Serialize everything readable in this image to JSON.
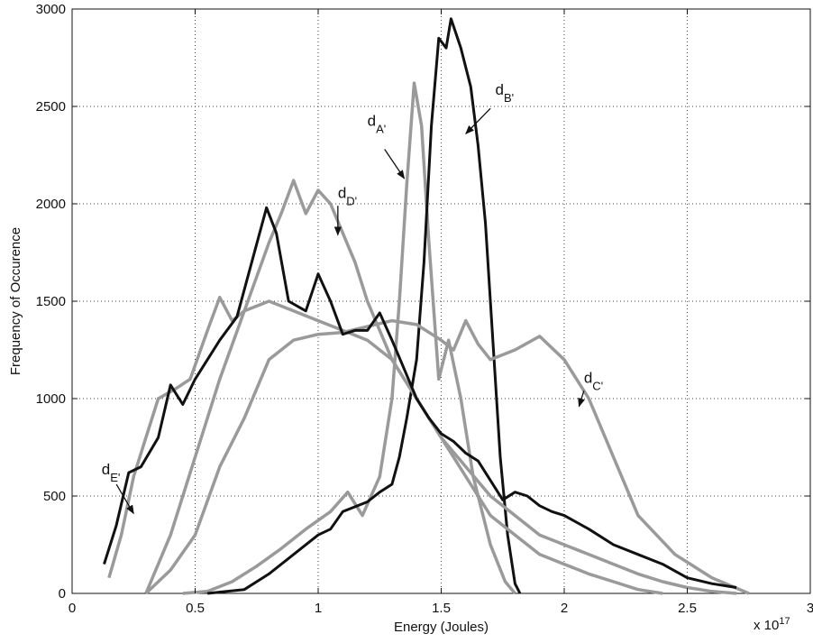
{
  "chart_data": {
    "type": "line",
    "title": "",
    "xlabel": "Energy (Joules)",
    "ylabel": "Frequency of Occurence",
    "x_multiplier_label": "x 10",
    "x_multiplier_exponent": "17",
    "xlim": [
      0,
      3
    ],
    "ylim": [
      0,
      3000
    ],
    "x_ticks": [
      0,
      0.5,
      1,
      1.5,
      2,
      2.5,
      3
    ],
    "x_tick_labels": [
      "0",
      "0.5",
      "1",
      "1.5",
      "2",
      "2.5",
      "3"
    ],
    "y_ticks": [
      0,
      500,
      1000,
      1500,
      2000,
      2500,
      3000
    ],
    "y_tick_labels": [
      "0",
      "500",
      "1000",
      "1500",
      "2000",
      "2500",
      "3000"
    ],
    "grid": true,
    "series": [
      {
        "color": "#9a9a9a",
        "points": [
          [
            0.45,
            0
          ],
          [
            0.55,
            10
          ],
          [
            0.65,
            60
          ],
          [
            0.75,
            140
          ],
          [
            0.85,
            230
          ],
          [
            0.95,
            330
          ],
          [
            1.05,
            420
          ],
          [
            1.12,
            520
          ],
          [
            1.18,
            400
          ],
          [
            1.25,
            600
          ],
          [
            1.3,
            1000
          ],
          [
            1.33,
            1500
          ],
          [
            1.36,
            2100
          ],
          [
            1.39,
            2620
          ],
          [
            1.42,
            2400
          ],
          [
            1.45,
            1800
          ],
          [
            1.49,
            1100
          ],
          [
            1.53,
            1300
          ],
          [
            1.58,
            1000
          ],
          [
            1.63,
            600
          ],
          [
            1.7,
            250
          ],
          [
            1.76,
            60
          ],
          [
            1.8,
            0
          ]
        ]
      },
      {
        "color": "#111111",
        "points": [
          [
            0.55,
            0
          ],
          [
            0.7,
            20
          ],
          [
            0.8,
            100
          ],
          [
            0.9,
            200
          ],
          [
            1.0,
            300
          ],
          [
            1.05,
            330
          ],
          [
            1.1,
            420
          ],
          [
            1.2,
            470
          ],
          [
            1.25,
            520
          ],
          [
            1.3,
            560
          ],
          [
            1.33,
            700
          ],
          [
            1.36,
            900
          ],
          [
            1.4,
            1200
          ],
          [
            1.43,
            1700
          ],
          [
            1.46,
            2400
          ],
          [
            1.49,
            2850
          ],
          [
            1.52,
            2800
          ],
          [
            1.54,
            2950
          ],
          [
            1.58,
            2800
          ],
          [
            1.62,
            2600
          ],
          [
            1.65,
            2300
          ],
          [
            1.68,
            1900
          ],
          [
            1.71,
            1300
          ],
          [
            1.74,
            700
          ],
          [
            1.77,
            300
          ],
          [
            1.8,
            50
          ],
          [
            1.82,
            0
          ]
        ]
      },
      {
        "color": "#9a9a9a",
        "points": [
          [
            0.3,
            0
          ],
          [
            0.4,
            120
          ],
          [
            0.5,
            300
          ],
          [
            0.6,
            650
          ],
          [
            0.7,
            900
          ],
          [
            0.8,
            1200
          ],
          [
            0.9,
            1300
          ],
          [
            1.0,
            1330
          ],
          [
            1.1,
            1340
          ],
          [
            1.2,
            1370
          ],
          [
            1.3,
            1400
          ],
          [
            1.4,
            1380
          ],
          [
            1.5,
            1300
          ],
          [
            1.55,
            1250
          ],
          [
            1.6,
            1400
          ],
          [
            1.65,
            1280
          ],
          [
            1.7,
            1200
          ],
          [
            1.8,
            1250
          ],
          [
            1.9,
            1320
          ],
          [
            2.0,
            1200
          ],
          [
            2.1,
            1000
          ],
          [
            2.2,
            700
          ],
          [
            2.3,
            400
          ],
          [
            2.45,
            200
          ],
          [
            2.6,
            80
          ],
          [
            2.75,
            0
          ]
        ]
      },
      {
        "color": "#9a9a9a",
        "points": [
          [
            0.3,
            0
          ],
          [
            0.4,
            300
          ],
          [
            0.5,
            700
          ],
          [
            0.6,
            1100
          ],
          [
            0.7,
            1450
          ],
          [
            0.8,
            1800
          ],
          [
            0.85,
            1950
          ],
          [
            0.9,
            2120
          ],
          [
            0.95,
            1950
          ],
          [
            1.0,
            2070
          ],
          [
            1.05,
            2000
          ],
          [
            1.1,
            1850
          ],
          [
            1.15,
            1700
          ],
          [
            1.2,
            1500
          ],
          [
            1.25,
            1350
          ],
          [
            1.3,
            1200
          ],
          [
            1.4,
            1000
          ],
          [
            1.5,
            800
          ],
          [
            1.6,
            600
          ],
          [
            1.7,
            400
          ],
          [
            1.8,
            300
          ],
          [
            1.9,
            200
          ],
          [
            2.0,
            150
          ],
          [
            2.1,
            100
          ],
          [
            2.2,
            60
          ],
          [
            2.3,
            20
          ],
          [
            2.4,
            0
          ]
        ]
      },
      {
        "color": "#9a9a9a",
        "points": [
          [
            0.15,
            80
          ],
          [
            0.2,
            300
          ],
          [
            0.25,
            600
          ],
          [
            0.3,
            800
          ],
          [
            0.35,
            1000
          ],
          [
            0.42,
            1050
          ],
          [
            0.48,
            1100
          ],
          [
            0.55,
            1350
          ],
          [
            0.6,
            1520
          ],
          [
            0.65,
            1400
          ],
          [
            0.7,
            1450
          ],
          [
            0.8,
            1500
          ],
          [
            0.9,
            1450
          ],
          [
            1.0,
            1400
          ],
          [
            1.1,
            1350
          ],
          [
            1.2,
            1300
          ],
          [
            1.3,
            1200
          ],
          [
            1.4,
            1000
          ],
          [
            1.5,
            800
          ],
          [
            1.6,
            650
          ],
          [
            1.7,
            500
          ],
          [
            1.8,
            400
          ],
          [
            1.9,
            300
          ],
          [
            2.0,
            250
          ],
          [
            2.1,
            200
          ],
          [
            2.2,
            150
          ],
          [
            2.3,
            100
          ],
          [
            2.4,
            60
          ],
          [
            2.5,
            30
          ],
          [
            2.6,
            10
          ],
          [
            2.7,
            0
          ]
        ]
      },
      {
        "color": "#111111",
        "points": [
          [
            0.13,
            150
          ],
          [
            0.18,
            350
          ],
          [
            0.23,
            620
          ],
          [
            0.28,
            650
          ],
          [
            0.35,
            800
          ],
          [
            0.4,
            1070
          ],
          [
            0.45,
            970
          ],
          [
            0.5,
            1100
          ],
          [
            0.6,
            1300
          ],
          [
            0.67,
            1420
          ],
          [
            0.73,
            1700
          ],
          [
            0.79,
            1980
          ],
          [
            0.83,
            1850
          ],
          [
            0.88,
            1500
          ],
          [
            0.95,
            1450
          ],
          [
            1.0,
            1640
          ],
          [
            1.05,
            1500
          ],
          [
            1.1,
            1330
          ],
          [
            1.15,
            1350
          ],
          [
            1.2,
            1350
          ],
          [
            1.25,
            1440
          ],
          [
            1.3,
            1300
          ],
          [
            1.35,
            1150
          ],
          [
            1.4,
            1000
          ],
          [
            1.45,
            900
          ],
          [
            1.5,
            820
          ],
          [
            1.55,
            780
          ],
          [
            1.6,
            720
          ],
          [
            1.65,
            680
          ],
          [
            1.7,
            580
          ],
          [
            1.75,
            480
          ],
          [
            1.8,
            520
          ],
          [
            1.85,
            500
          ],
          [
            1.9,
            450
          ],
          [
            1.95,
            420
          ],
          [
            2.0,
            400
          ],
          [
            2.1,
            330
          ],
          [
            2.2,
            250
          ],
          [
            2.3,
            200
          ],
          [
            2.4,
            150
          ],
          [
            2.5,
            80
          ],
          [
            2.6,
            50
          ],
          [
            2.7,
            30
          ]
        ]
      }
    ],
    "annotations": [
      {
        "base": "d",
        "sub": "A'",
        "text_at": [
          1.2,
          2400
        ],
        "arrow_from": [
          1.27,
          2280
        ],
        "arrow_to": [
          1.35,
          2130
        ]
      },
      {
        "base": "d",
        "sub": "B'",
        "text_at": [
          1.72,
          2560
        ],
        "arrow_from": [
          1.7,
          2490
        ],
        "arrow_to": [
          1.6,
          2360
        ]
      },
      {
        "base": "d",
        "sub": "C'",
        "text_at": [
          2.08,
          1080
        ],
        "arrow_from": [
          2.08,
          1040
        ],
        "arrow_to": [
          2.06,
          960
        ]
      },
      {
        "base": "d",
        "sub": "D'",
        "text_at": [
          1.08,
          2030
        ],
        "arrow_from": [
          1.08,
          1990
        ],
        "arrow_to": [
          1.08,
          1840
        ]
      },
      {
        "base": "d",
        "sub": "E'",
        "text_at": [
          0.12,
          610
        ],
        "arrow_from": [
          0.18,
          560
        ],
        "arrow_to": [
          0.25,
          410
        ]
      }
    ]
  }
}
